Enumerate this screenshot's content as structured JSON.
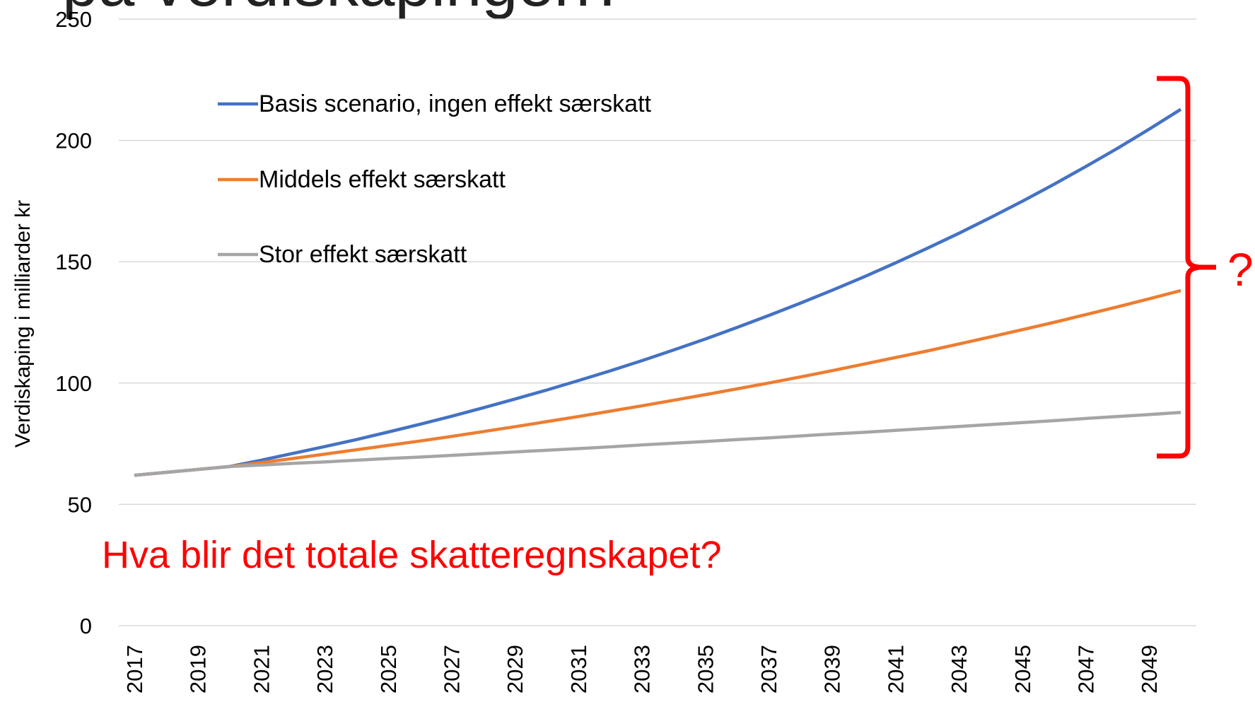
{
  "chart_data": {
    "type": "line",
    "title": "på verdiskapingen?",
    "y_label": "Verdiskaping i milliarder kr",
    "annotations": [
      "Hva blir det totale skatteregnskapet?",
      "?"
    ],
    "categories": [
      2017,
      null,
      2019,
      null,
      2021,
      null,
      2023,
      null,
      2025,
      null,
      2027,
      null,
      2029,
      null,
      2031,
      null,
      2033,
      null,
      2035,
      null,
      2037,
      null,
      2039,
      null,
      2041,
      null,
      2043,
      null,
      2045,
      null,
      2047,
      null,
      2049,
      null
    ],
    "series": [
      {
        "name": "Basis scenario, ingen effekt særskatt",
        "color": "#4472c4",
        "values": [
          62,
          63.2,
          64.4,
          65.6,
          68.2,
          71.0,
          73.8,
          76.7,
          79.8,
          83.0,
          86.3,
          89.8,
          93.4,
          97.1,
          101.0,
          105.0,
          109.2,
          113.6,
          118.1,
          122.9,
          127.8,
          132.9,
          138.2,
          143.7,
          149.5,
          155.5,
          161.7,
          168.2,
          174.9,
          181.9,
          189.2,
          196.7,
          204.6,
          212.8
        ]
      },
      {
        "name": "Middels effekt særskatt",
        "color": "#ed7d31",
        "values": [
          62,
          63.2,
          64.4,
          65.6,
          67.2,
          68.9,
          70.7,
          72.5,
          74.3,
          76.1,
          78.0,
          80.0,
          82.0,
          84.1,
          86.2,
          88.4,
          90.6,
          92.9,
          95.2,
          97.6,
          100.0,
          102.5,
          105.1,
          107.8,
          110.5,
          113.2,
          116.1,
          119.0,
          122.0,
          125.0,
          128.2,
          131.4,
          134.7,
          138.1
        ]
      },
      {
        "name": "Stor effekt særskatt",
        "color": "#a5a5a5",
        "values": [
          62,
          63.2,
          64.4,
          65.6,
          66.2,
          66.9,
          67.5,
          68.2,
          68.9,
          69.5,
          70.2,
          70.9,
          71.6,
          72.3,
          73.0,
          73.7,
          74.5,
          75.2,
          75.9,
          76.7,
          77.4,
          78.2,
          79.0,
          79.7,
          80.5,
          81.3,
          82.1,
          82.9,
          83.7,
          84.5,
          85.4,
          86.2,
          87.0,
          87.9
        ]
      }
    ],
    "ylim": [
      0,
      250
    ],
    "yticks": [
      0,
      50,
      100,
      150,
      200,
      250
    ],
    "grid": true,
    "legend": "upper left",
    "annotation_color": "#ff0000"
  }
}
